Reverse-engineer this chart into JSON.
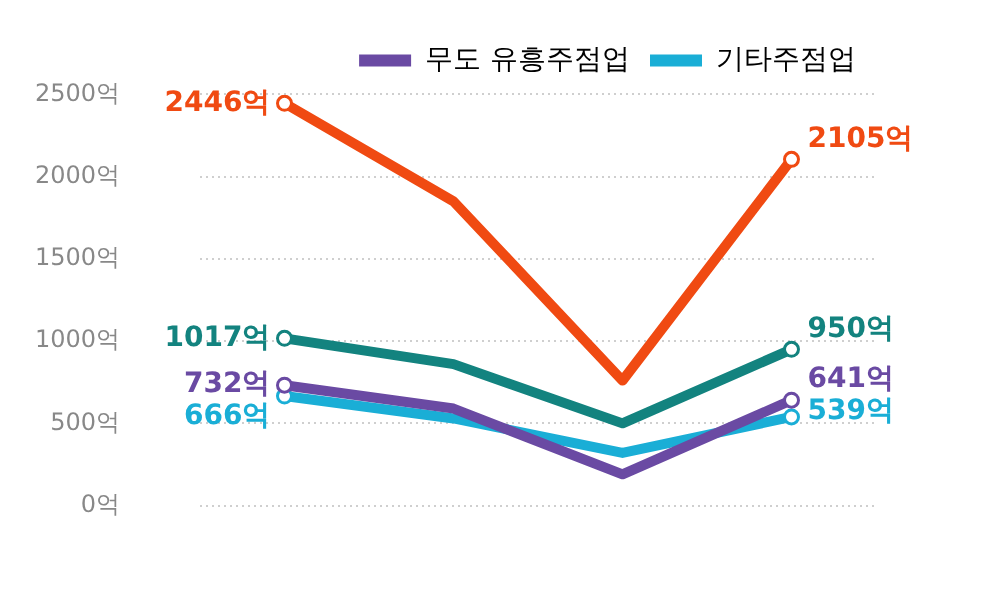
{
  "chart_data": {
    "type": "line",
    "categories": [
      null,
      null,
      null,
      null
    ],
    "series": [
      {
        "color": "#f04a12",
        "values": [
          2446,
          1850,
          760,
          2105
        ],
        "value_labels": [
          "2446억",
          null,
          null,
          "2105억"
        ]
      },
      {
        "color": "#13837f",
        "values": [
          1017,
          860,
          500,
          950
        ],
        "value_labels": [
          "1017억",
          null,
          null,
          "950억"
        ]
      },
      {
        "name": "무도 유흥주점업",
        "color": "#6a4aa3",
        "values": [
          732,
          590,
          190,
          641
        ],
        "value_labels": [
          "732억",
          null,
          null,
          "641억"
        ]
      },
      {
        "name": "기타주점업",
        "color": "#1aaed6",
        "values": [
          666,
          530,
          320,
          539
        ],
        "value_labels": [
          "666억",
          null,
          null,
          "539억"
        ]
      }
    ],
    "ylim": [
      0,
      2500
    ],
    "yticks": [
      {
        "value": 0,
        "label": "0억"
      },
      {
        "value": 500,
        "label": "500억"
      },
      {
        "value": 1000,
        "label": "1000억"
      },
      {
        "value": 1500,
        "label": "1500억"
      },
      {
        "value": 2000,
        "label": "2000억"
      },
      {
        "value": 2500,
        "label": "2500억"
      }
    ],
    "grid": "y",
    "legend": "top right",
    "marker": "circle",
    "line_style": "solid"
  }
}
